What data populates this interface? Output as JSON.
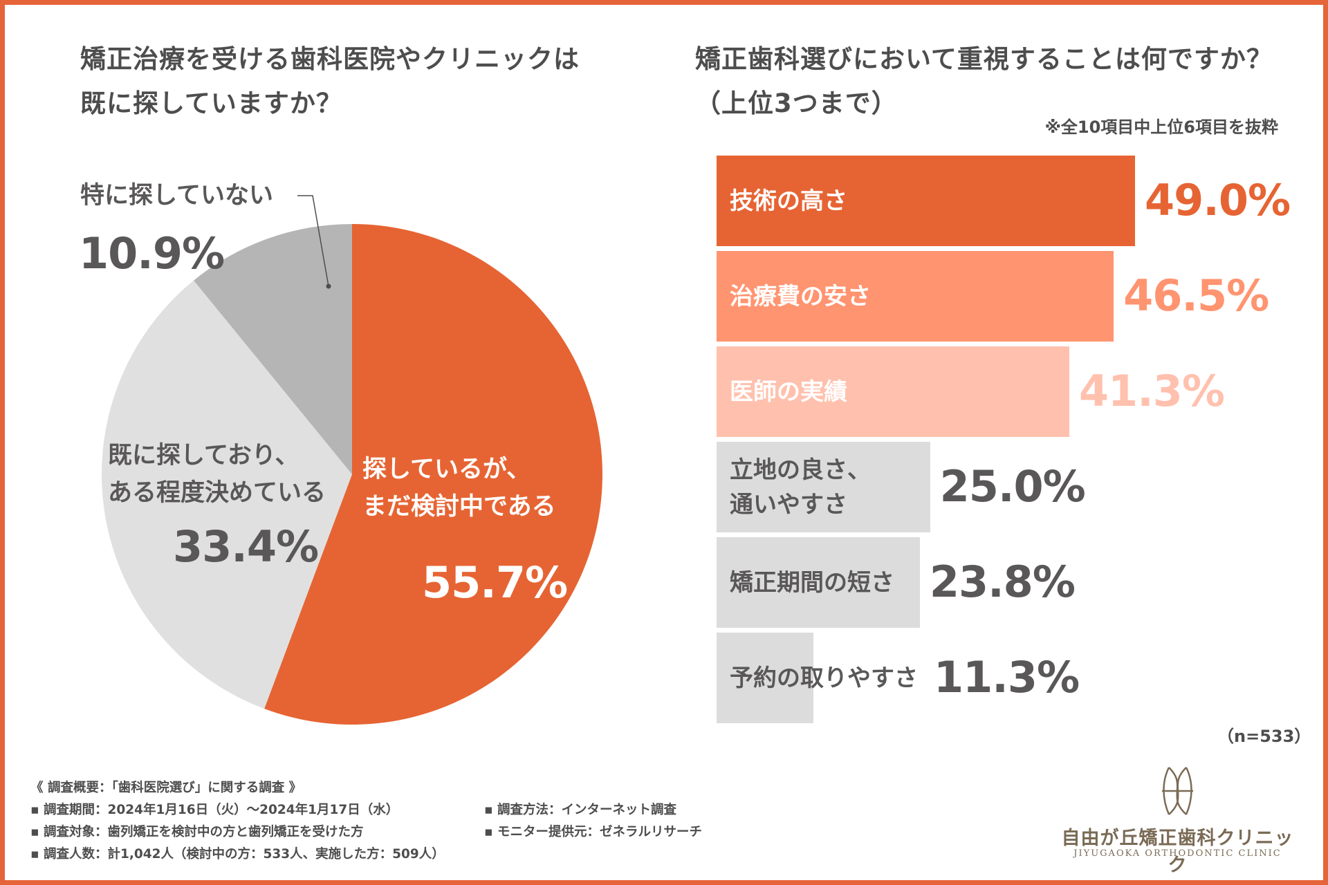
{
  "left_title": [
    "矯正治療を受ける歯科医院やクリニックは",
    "既に探していますか？"
  ],
  "right_title": [
    "矯正歯科選びにおいて重視することは何ですか？",
    "（上位3つまで）"
  ],
  "right_note": "※全10項目中上位6項目を抜粋",
  "n_note": "（n=533）",
  "colors": {
    "frame": "#e6643a",
    "pie_primary": "#e66433",
    "pie_light": "#e0e0e0",
    "pie_dark": "#b5b5b5",
    "bar_1": "#e66433",
    "bar_2": "#ff9470",
    "bar_3": "#ffc1ae",
    "bar_gray": "#dcdcdc",
    "text_dark": "#595757"
  },
  "chart_data": [
    {
      "type": "pie",
      "title": "矯正治療を受ける歯科医院やクリニックは既に探していますか？",
      "slices": [
        {
          "label_lines": [
            "探しているが、",
            "まだ検討中である"
          ],
          "value": 55.7,
          "value_label": "55.7%"
        },
        {
          "label_lines": [
            "既に探しており、",
            "ある程度決めている"
          ],
          "value": 33.4,
          "value_label": "33.4%"
        },
        {
          "label_lines": [
            "特に探していない"
          ],
          "value": 10.9,
          "value_label": "10.9%"
        }
      ]
    },
    {
      "type": "bar",
      "orientation": "horizontal",
      "title": "矯正歯科選びにおいて重視することは何ですか？（上位3つまで）",
      "xlim": [
        0,
        49
      ],
      "bars": [
        {
          "label_lines": [
            "技術の高さ"
          ],
          "value": 49.0,
          "value_label": "49.0%"
        },
        {
          "label_lines": [
            "治療費の安さ"
          ],
          "value": 46.5,
          "value_label": "46.5%"
        },
        {
          "label_lines": [
            "医師の実績"
          ],
          "value": 41.3,
          "value_label": "41.3%"
        },
        {
          "label_lines": [
            "立地の良さ、",
            "通いやすさ"
          ],
          "value": 25.0,
          "value_label": "25.0%"
        },
        {
          "label_lines": [
            "矯正期間の短さ"
          ],
          "value": 23.8,
          "value_label": "23.8%"
        },
        {
          "label_lines": [
            "予約の取りやすさ"
          ],
          "value": 11.3,
          "value_label": "11.3%"
        }
      ]
    }
  ],
  "survey": {
    "heading": "《 調査概要：「歯科医院選び」に関する調査 》",
    "period": "▪ 調査期間：2024年1月16日（火）〜2024年1月17日（水）",
    "target": "▪ 調査対象：歯列矯正を検討中の方と歯列矯正を受けた方",
    "count": "▪ 調査人数：計1,042人（検討中の方：533人、実施した方：509人）",
    "method": "▪ 調査方法：インターネット調査",
    "provider": "▪ モニター提供元：ゼネラルリサーチ"
  },
  "logo": {
    "name": "自由が丘矯正歯科クリニック",
    "sub": "JIYUGAOKA ORTHODONTIC CLINIC"
  }
}
